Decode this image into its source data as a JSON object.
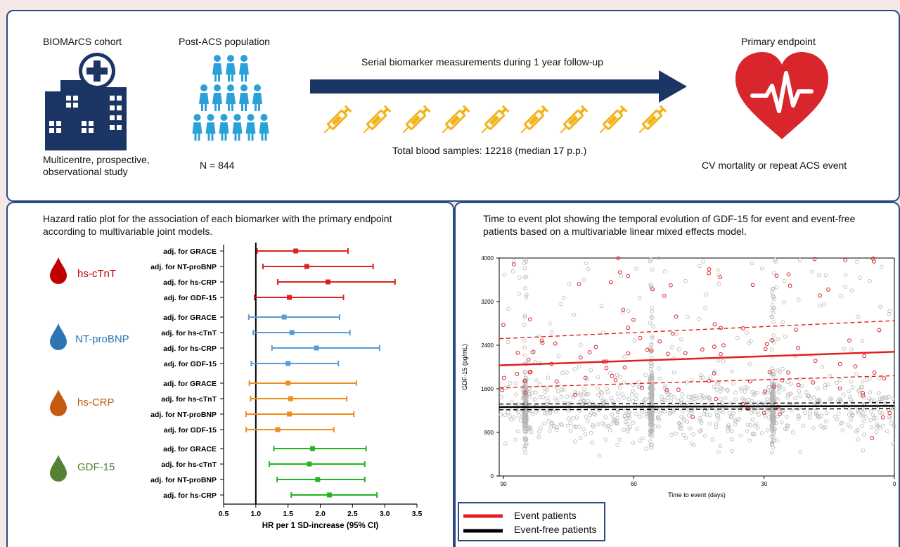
{
  "top": {
    "cohort_title": "BIOMArCS cohort",
    "cohort_desc_1": "Multicentre, prospective,",
    "cohort_desc_2": "observational study",
    "population_title": "Post-ACS population",
    "population_n": "N = 844",
    "serial_text": "Serial biomarker measurements during 1 year follow-up",
    "samples_text": "Total blood samples: 12218 (median 17 p.p.)",
    "endpoint_title": "Primary endpoint",
    "endpoint_desc": "CV mortality or repeat ACS event",
    "colors": {
      "navy": "#1b3564",
      "people": "#2aa1d8",
      "syringe": "#f4b21b",
      "heart": "#d9262d"
    }
  },
  "left": {
    "title_1": "Hazard ratio plot for the association of each biomarker with the primary endpoint",
    "title_2": "according to multivariable joint models.",
    "biomarkers": [
      {
        "name": "hs-cTnT",
        "color": "#c00000"
      },
      {
        "name": "NT-proBNP",
        "color": "#2e75b6"
      },
      {
        "name": "hs-CRP",
        "color": "#c55a11"
      },
      {
        "name": "GDF-15",
        "color": "#548235"
      }
    ]
  },
  "right": {
    "title_1": "Time to event plot showing the temporal evolution of GDF-15 for event and event-free",
    "title_2": "patients based on a multivariable linear mixed effects model.",
    "legend": {
      "event": "Event patients",
      "eventfree": "Event-free patients"
    }
  },
  "chart_data": [
    {
      "type": "forest",
      "xlabel": "HR per 1 SD-increase (95% CI)",
      "xlim": [
        0.5,
        3.5
      ],
      "xticks": [
        "0.5",
        "1.0",
        "1.5",
        "2.0",
        "2.5",
        "3.0",
        "3.5"
      ],
      "reference_line": 1.0,
      "groups": [
        {
          "biomarker": "hs-cTnT",
          "color": "#e02020",
          "rows": [
            {
              "label": "adj. for GRACE",
              "hr": 1.62,
              "lo": 1.02,
              "hi": 2.43
            },
            {
              "label": "adj. for NT-proBNP",
              "hr": 1.79,
              "lo": 1.11,
              "hi": 2.82
            },
            {
              "label": "adj. for hs-CRP",
              "hr": 2.12,
              "lo": 1.34,
              "hi": 3.16
            },
            {
              "label": "adj. for GDF-15",
              "hr": 1.52,
              "lo": 0.98,
              "hi": 2.36
            }
          ]
        },
        {
          "biomarker": "NT-proBNP",
          "color": "#5a9bd5",
          "rows": [
            {
              "label": "adj. for GRACE",
              "hr": 1.44,
              "lo": 0.89,
              "hi": 2.3
            },
            {
              "label": "adj. for hs-cTnT",
              "hr": 1.56,
              "lo": 0.96,
              "hi": 2.46
            },
            {
              "label": "adj. for hs-CRP",
              "hr": 1.94,
              "lo": 1.25,
              "hi": 2.92
            },
            {
              "label": "adj. for GDF-15",
              "hr": 1.5,
              "lo": 0.93,
              "hi": 2.28
            }
          ]
        },
        {
          "biomarker": "hs-CRP",
          "color": "#f08c1e",
          "rows": [
            {
              "label": "adj. for GRACE",
              "hr": 1.5,
              "lo": 0.9,
              "hi": 2.56
            },
            {
              "label": "adj. for hs-cTnT",
              "hr": 1.54,
              "lo": 0.92,
              "hi": 2.41
            },
            {
              "label": "adj. for NT-proBNP",
              "hr": 1.52,
              "lo": 0.85,
              "hi": 2.52
            },
            {
              "label": "adj. for GDF-15",
              "hr": 1.34,
              "lo": 0.85,
              "hi": 2.21
            }
          ]
        },
        {
          "biomarker": "GDF-15",
          "color": "#22b422",
          "rows": [
            {
              "label": "adj. for GRACE",
              "hr": 1.88,
              "lo": 1.28,
              "hi": 2.71
            },
            {
              "label": "adj. for hs-cTnT",
              "hr": 1.83,
              "lo": 1.21,
              "hi": 2.69
            },
            {
              "label": "adj. for NT-proBNP",
              "hr": 1.96,
              "lo": 1.33,
              "hi": 2.69
            },
            {
              "label": "adj. for hs-CRP",
              "hr": 2.14,
              "lo": 1.55,
              "hi": 2.88
            }
          ]
        }
      ]
    },
    {
      "type": "scatter",
      "xlabel": "Time to event (days)",
      "ylabel": "GDF-15 (pg/mL)",
      "xlim": [
        91,
        0
      ],
      "ylim": [
        0,
        4000
      ],
      "xticks": [
        90,
        60,
        30,
        0
      ],
      "yticks": [
        0,
        800,
        1600,
        2400,
        3200,
        4000
      ],
      "series": [
        {
          "name": "Event patients",
          "color": "#e02020",
          "fit": {
            "start": 2030,
            "end": 2280
          },
          "ci_upper": {
            "start": 2520,
            "end": 2850
          },
          "ci_lower": {
            "start": 1620,
            "end": 1840
          }
        },
        {
          "name": "Event-free patients",
          "color": "#000000",
          "fit": {
            "start": 1265,
            "end": 1285
          },
          "ci_upper": {
            "start": 1320,
            "end": 1345
          },
          "ci_lower": {
            "start": 1215,
            "end": 1235
          }
        }
      ]
    }
  ]
}
